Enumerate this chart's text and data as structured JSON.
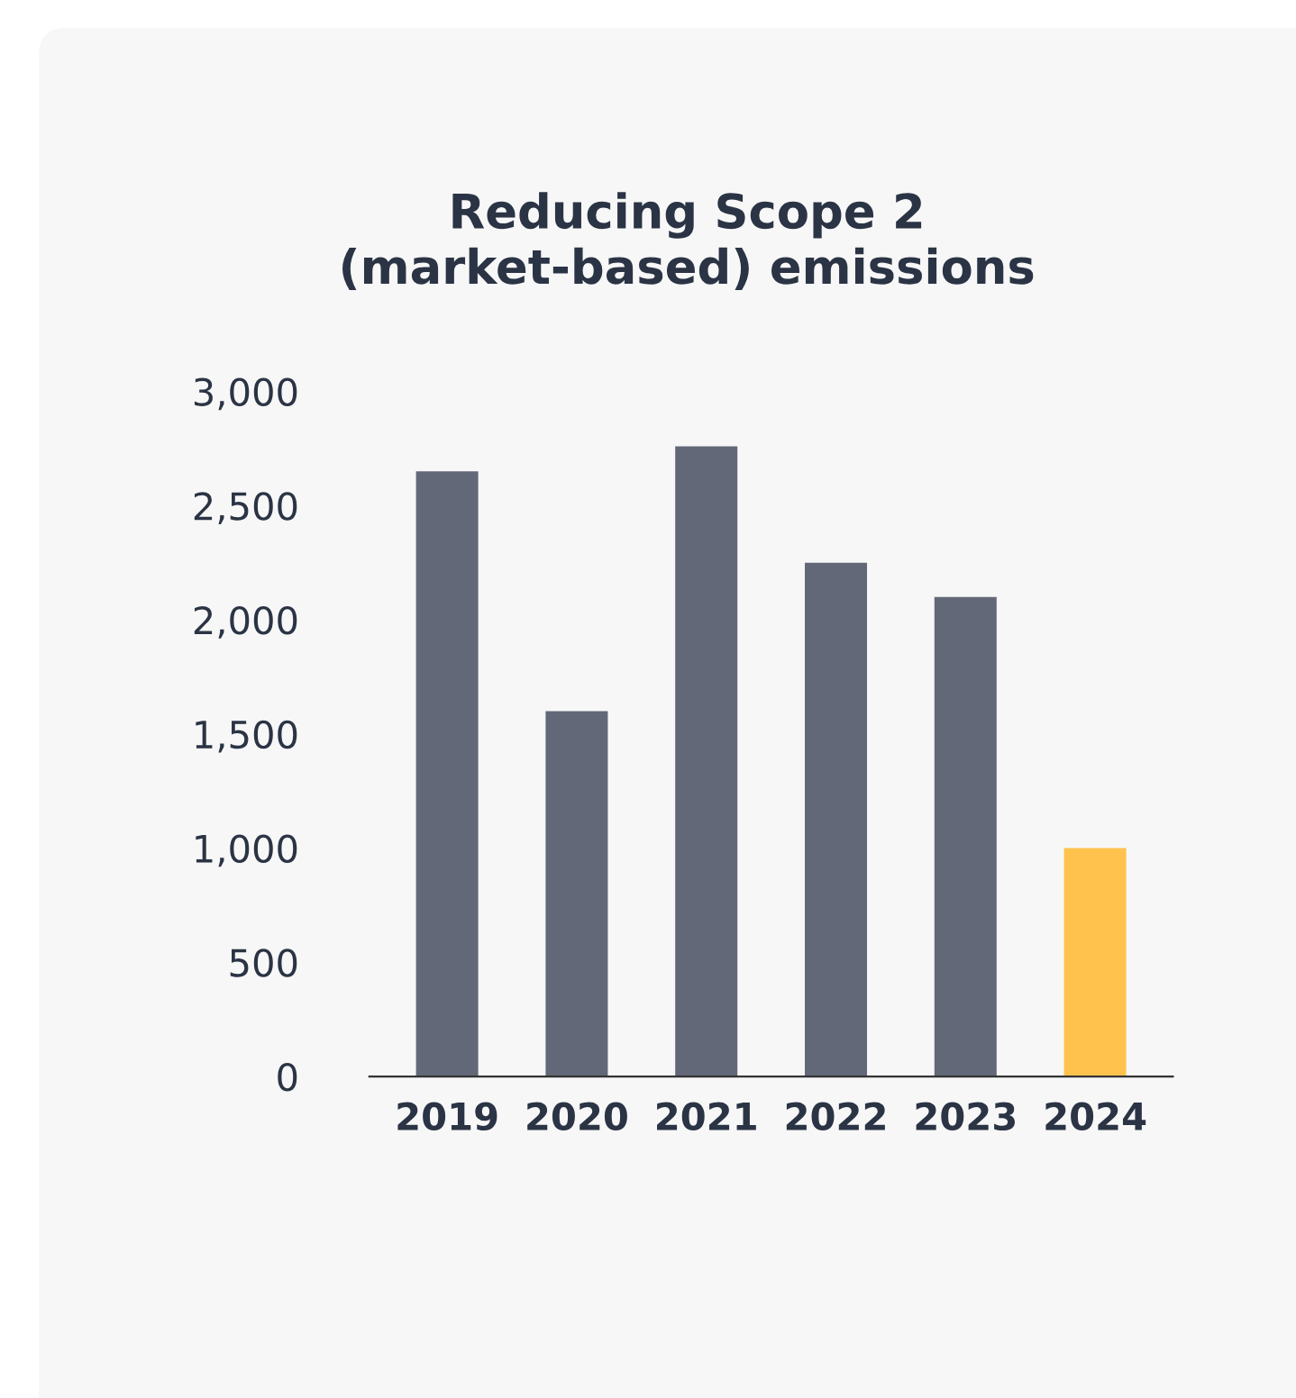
{
  "chart_data": {
    "type": "bar",
    "title": "Reducing Scope 2\n(market-based) emissions",
    "categories": [
      "2019",
      "2020",
      "2021",
      "2022",
      "2023",
      "2024"
    ],
    "values": [
      2650,
      1600,
      2760,
      2250,
      2100,
      1000
    ],
    "colors": [
      "#636878",
      "#636878",
      "#636878",
      "#636878",
      "#636878",
      "#ffc24d"
    ],
    "ylim": [
      0,
      3000
    ],
    "yticks": [
      {
        "value": 0,
        "label": "0"
      },
      {
        "value": 500,
        "label": "500"
      },
      {
        "value": 1000,
        "label": "1,000"
      },
      {
        "value": 1500,
        "label": "1,500"
      },
      {
        "value": 2000,
        "label": "2,000"
      },
      {
        "value": 2500,
        "label": "2,500"
      },
      {
        "value": 3000,
        "label": "3,000"
      }
    ],
    "grid": false,
    "legend": false
  }
}
